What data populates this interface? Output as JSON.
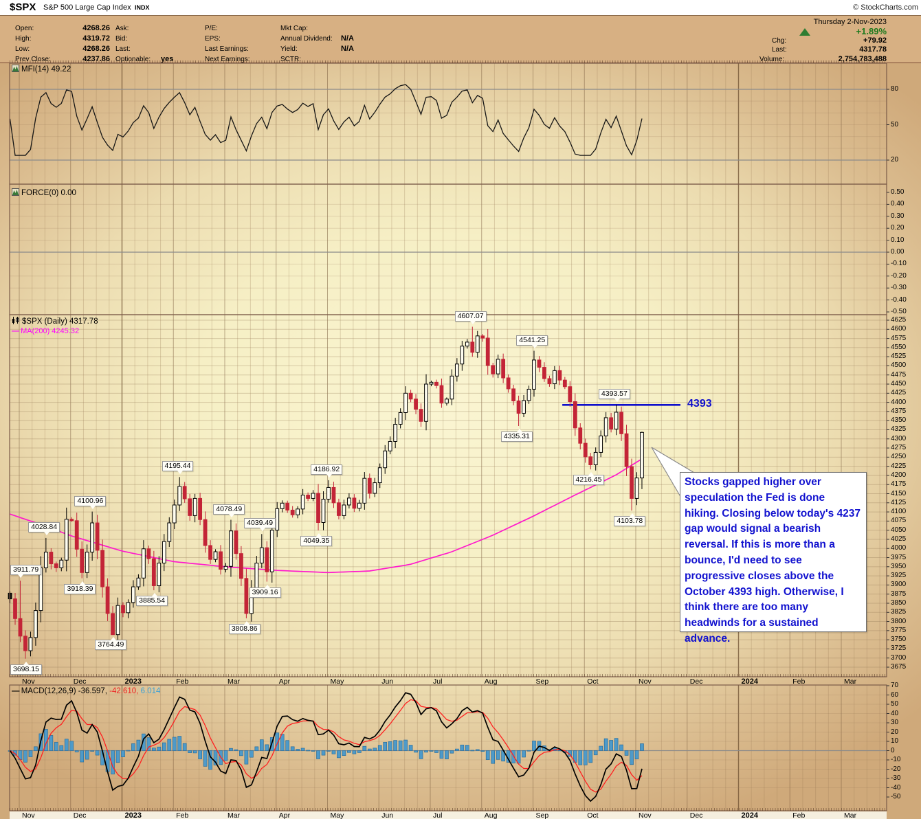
{
  "titlebar": {
    "symbol": "$SPX",
    "name": "S&P 500 Large Cap Index",
    "exchange": "INDX",
    "copyright": "© StockCharts.com"
  },
  "quote": {
    "col1": [
      {
        "label": "Open:",
        "value": "4268.26"
      },
      {
        "label": "High:",
        "value": "4319.72"
      },
      {
        "label": "Low:",
        "value": "4268.26"
      },
      {
        "label": "Prev Close:",
        "value": "4237.86"
      }
    ],
    "col2": [
      {
        "label": "Ask:",
        "value": ""
      },
      {
        "label": "Bid:",
        "value": ""
      },
      {
        "label": "Last:",
        "value": ""
      },
      {
        "label": "Optionable:",
        "value": "yes"
      }
    ],
    "col3": [
      {
        "label": "P/E:",
        "value": ""
      },
      {
        "label": "EPS:",
        "value": ""
      },
      {
        "label": "Last Earnings:",
        "value": ""
      },
      {
        "label": "Next Earnings:",
        "value": ""
      }
    ],
    "col4": [
      {
        "label": "Mkt Cap:",
        "value": ""
      },
      {
        "label": "Annual Dividend:",
        "value": "N/A"
      },
      {
        "label": "Yield:",
        "value": "N/A"
      },
      {
        "label": "SCTR:",
        "value": ""
      }
    ],
    "date": "Thursday 2-Nov-2023",
    "change_pct": "+1.89%",
    "chg_label": "Chg:",
    "chg_value": "+79.92",
    "last_label": "Last:",
    "last_value": "4317.78",
    "volume_label": "Volume:",
    "volume_value": "2,754,783,488"
  },
  "panel_labels": {
    "mfi": "MFI(14) 49.22",
    "force": "FORCE(0) 0.00",
    "price": "$SPX (Daily) 4317.78",
    "ma": "MA(200) 4245.32",
    "macd_parts": [
      {
        "text": "MACD(12,26,9) -36.597,",
        "color": "#000000"
      },
      {
        "text": " -42.610,",
        "color": "#ee2222"
      },
      {
        "text": " 6.014",
        "color": "#3a9fd6"
      }
    ]
  },
  "note": {
    "text": "Stocks gapped higher over speculation the Fed is done hiking. Closing below today's 4237 gap would signal a bearish reversal. If this is more than a bounce, I'd need to see progressive closes above the October 4393 high. Otherwise, I think there are too many headwinds for a sustained advance.",
    "color": "#1212cf"
  },
  "level_line": {
    "value": 4393,
    "label": "4393",
    "color": "#0f0fcc",
    "t_start": 10.57,
    "t_end": 12.87
  },
  "chart_data": {
    "type": "candlestick",
    "title": "$SPX S&P 500 Large Cap Index, daily, Nov-2022 through 2-Nov-2023 (axis extends to Mar-2024)",
    "months": [
      "Nov",
      "Dec",
      "2023",
      "Feb",
      "Mar",
      "Apr",
      "May",
      "Jun",
      "Jul",
      "Aug",
      "Sep",
      "Oct",
      "Nov",
      "Dec",
      "2024",
      "Feb",
      "Mar"
    ],
    "price_axis": {
      "min": 3675,
      "max": 4625,
      "step": 25
    },
    "mfi_axis": [
      80,
      50,
      20
    ],
    "force_axis": [
      "0.50",
      "0.40",
      "0.30",
      "0.20",
      "0.10",
      "0.00",
      "-0.10",
      "-0.20",
      "-0.30",
      "-0.40",
      "-0.50"
    ],
    "macd_axis": [
      70,
      60,
      50,
      40,
      30,
      20,
      10,
      0,
      -10,
      -20,
      -30,
      -40,
      -50
    ],
    "t_start": -0.18,
    "t_end": 12.12,
    "closes": [
      3862,
      3808,
      3760,
      3720,
      3756,
      3830,
      3947,
      3990,
      3958,
      3947,
      3968,
      4080,
      4076,
      3998,
      3934,
      3990,
      4070,
      3995,
      3895,
      3822,
      3764,
      3844,
      3824,
      3852,
      3895,
      3919,
      3999,
      3972,
      3898,
      3960,
      4019,
      4070,
      4119,
      4170,
      4136,
      4090,
      4137,
      4079,
      4008,
      3970,
      3991,
      3943,
      3951,
      4048,
      3986,
      3918,
      3822,
      3891,
      3960,
      4002,
      3936,
      4050,
      4109,
      4124,
      4105,
      4092,
      4108,
      4146,
      4137,
      4151,
      4071,
      4135,
      4167,
      4125,
      4090,
      4119,
      4138,
      4110,
      4124,
      4192,
      4151,
      4180,
      4221,
      4267,
      4293,
      4340,
      4372,
      4425,
      4409,
      4381,
      4348,
      4450,
      4455,
      4446,
      4398,
      4409,
      4472,
      4505,
      4554,
      4565,
      4537,
      4582,
      4576,
      4501,
      4478,
      4518,
      4467,
      4437,
      4404,
      4370,
      4405,
      4436,
      4516,
      4496,
      4465,
      4451,
      4487,
      4461,
      4443,
      4402,
      4330,
      4288,
      4251,
      4229,
      4263,
      4308,
      4358,
      4327,
      4373,
      4314,
      4224,
      4137,
      4193,
      4317.78
    ],
    "callouts": [
      {
        "i": 2,
        "value": 3911.79,
        "side": "above"
      },
      {
        "i": 3,
        "value": 3698.15,
        "side": "below"
      },
      {
        "i": 7,
        "value": 4028.84,
        "side": "above"
      },
      {
        "i": 14,
        "value": 3918.39,
        "side": "below"
      },
      {
        "i": 16,
        "value": 4100.96,
        "side": "above"
      },
      {
        "i": 20,
        "value": 3764.49,
        "side": "below"
      },
      {
        "i": 28,
        "value": 3885.54,
        "side": "below"
      },
      {
        "i": 33,
        "value": 4195.44,
        "side": "above"
      },
      {
        "i": 43,
        "value": 4078.49,
        "side": "above"
      },
      {
        "i": 46,
        "value": 3808.86,
        "side": "below"
      },
      {
        "i": 49,
        "value": 4039.49,
        "side": "above"
      },
      {
        "i": 50,
        "value": 3909.16,
        "side": "below"
      },
      {
        "i": 60,
        "value": 4049.35,
        "side": "below"
      },
      {
        "i": 62,
        "value": 4186.92,
        "side": "above"
      },
      {
        "i": 90,
        "value": 4607.07,
        "side": "above"
      },
      {
        "i": 99,
        "value": 4335.31,
        "side": "below"
      },
      {
        "i": 102,
        "value": 4541.25,
        "side": "above"
      },
      {
        "i": 113,
        "value": 4216.45,
        "side": "below"
      },
      {
        "i": 118,
        "value": 4393.57,
        "side": "above"
      },
      {
        "i": 121,
        "value": 4103.78,
        "side": "below"
      },
      {
        "i": 123,
        "value": 4319.72,
        "side": "above",
        "label": false
      }
    ],
    "ma200_anchors": [
      [
        -0.2,
        4095
      ],
      [
        0.5,
        4062
      ],
      [
        1,
        4035
      ],
      [
        2,
        3993
      ],
      [
        3,
        3964
      ],
      [
        4,
        3950
      ],
      [
        5,
        3940
      ],
      [
        6,
        3934
      ],
      [
        6.8,
        3938
      ],
      [
        7.6,
        3956
      ],
      [
        8.4,
        3990
      ],
      [
        9.2,
        4035
      ],
      [
        10,
        4088
      ],
      [
        10.8,
        4145
      ],
      [
        11.6,
        4200
      ],
      [
        12.12,
        4245.32
      ]
    ],
    "indicator_values": {
      "mfi_last": 49.22,
      "force_last": 0.0,
      "macd_last": -36.597,
      "macd_signal_last": -42.61,
      "macd_hist_last": 6.014
    },
    "colors": {
      "candle_down": "#c32437",
      "candle_up_fill": "#fffdf0",
      "candle_black": "#111111",
      "ma200": "#ff18cc",
      "macd_line": "#000000",
      "macd_signal": "#ff2020",
      "histogram": "#4e9ac9",
      "histogram_edge": "#2a6e9c",
      "level_blue": "#0f0fcc",
      "ref_gray": "#8a8a8a"
    }
  }
}
